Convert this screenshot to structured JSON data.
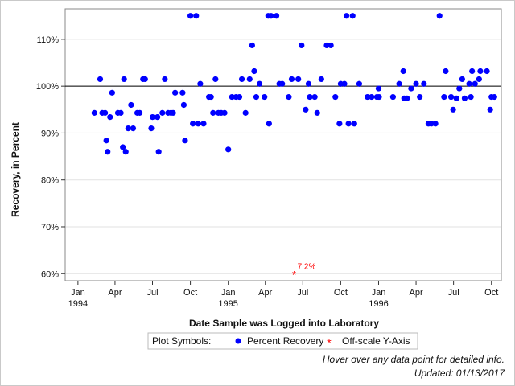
{
  "chart_data": {
    "type": "scatter",
    "xlabel": "Date Sample was Logged into Laboratory",
    "ylabel": "Recovery, in Percent",
    "x_range": [
      "1993-12-01",
      "1996-10-25"
    ],
    "ylim": [
      58.5,
      116.5
    ],
    "y_ticks": [
      60,
      70,
      80,
      90,
      100,
      110
    ],
    "y_tick_labels": [
      "60%",
      "70%",
      "80%",
      "90%",
      "100%",
      "110%"
    ],
    "reference_line": 100,
    "x_ticks": [
      {
        "date": "1994-01-01",
        "label": "Jan",
        "year": "1994"
      },
      {
        "date": "1994-04-01",
        "label": "Apr",
        "year": ""
      },
      {
        "date": "1994-07-01",
        "label": "Jul",
        "year": ""
      },
      {
        "date": "1994-10-01",
        "label": "Oct",
        "year": ""
      },
      {
        "date": "1995-01-01",
        "label": "Jan",
        "year": "1995"
      },
      {
        "date": "1995-04-01",
        "label": "Apr",
        "year": ""
      },
      {
        "date": "1995-07-01",
        "label": "Jul",
        "year": ""
      },
      {
        "date": "1995-10-01",
        "label": "Oct",
        "year": ""
      },
      {
        "date": "1996-01-01",
        "label": "Jan",
        "year": "1996"
      },
      {
        "date": "1996-04-01",
        "label": "Apr",
        "year": ""
      },
      {
        "date": "1996-07-01",
        "label": "Jul",
        "year": ""
      },
      {
        "date": "1996-10-01",
        "label": "Oct",
        "year": ""
      }
    ],
    "grid": "horizontal",
    "legend": {
      "title": "Plot Symbols:",
      "entries": [
        {
          "label": "Percent Recovery",
          "symbol": "dot",
          "color": "#0000ff"
        },
        {
          "label": "Off-scale Y-Axis",
          "symbol": "asterisk",
          "color": "#ff0000"
        }
      ],
      "placement": "bottom"
    },
    "series": [
      {
        "symbol": "dot",
        "color": "#0000ff",
        "points": [
          [
            "1994-02-10",
            94.3
          ],
          [
            "1994-02-24",
            101.5
          ],
          [
            "1994-03-01",
            94.3
          ],
          [
            "1994-03-08",
            94.3
          ],
          [
            "1994-03-11",
            88.4
          ],
          [
            "1994-03-14",
            86.0
          ],
          [
            "1994-03-20",
            93.4
          ],
          [
            "1994-03-25",
            98.6
          ],
          [
            "1994-04-08",
            94.3
          ],
          [
            "1994-04-15",
            94.3
          ],
          [
            "1994-04-20",
            87.0
          ],
          [
            "1994-04-23",
            101.5
          ],
          [
            "1994-04-27",
            86.0
          ],
          [
            "1994-05-03",
            91.0
          ],
          [
            "1994-05-10",
            96.0
          ],
          [
            "1994-05-15",
            91.0
          ],
          [
            "1994-05-25",
            94.3
          ],
          [
            "1994-05-31",
            94.3
          ],
          [
            "1994-06-08",
            101.5
          ],
          [
            "1994-06-13",
            101.5
          ],
          [
            "1994-06-28",
            91.0
          ],
          [
            "1994-07-01",
            93.4
          ],
          [
            "1994-07-13",
            93.4
          ],
          [
            "1994-07-16",
            86.0
          ],
          [
            "1994-07-25",
            94.3
          ],
          [
            "1994-07-31",
            101.5
          ],
          [
            "1994-08-08",
            94.3
          ],
          [
            "1994-08-15",
            94.3
          ],
          [
            "1994-08-20",
            94.3
          ],
          [
            "1994-08-25",
            98.6
          ],
          [
            "1994-09-12",
            98.6
          ],
          [
            "1994-09-15",
            96.0
          ],
          [
            "1994-09-18",
            88.4
          ],
          [
            "1994-10-01",
            115.0
          ],
          [
            "1994-10-07",
            92.0
          ],
          [
            "1994-10-15",
            115.0
          ],
          [
            "1994-10-20",
            92.0
          ],
          [
            "1994-10-25",
            100.5
          ],
          [
            "1994-11-02",
            92.0
          ],
          [
            "1994-11-15",
            97.7
          ],
          [
            "1994-11-20",
            97.7
          ],
          [
            "1994-11-25",
            94.3
          ],
          [
            "1994-12-01",
            101.5
          ],
          [
            "1994-12-08",
            94.3
          ],
          [
            "1994-12-15",
            94.3
          ],
          [
            "1994-12-23",
            94.3
          ],
          [
            "1995-01-01",
            86.5
          ],
          [
            "1995-01-10",
            97.7
          ],
          [
            "1995-01-20",
            97.7
          ],
          [
            "1995-01-28",
            97.7
          ],
          [
            "1995-02-03",
            101.5
          ],
          [
            "1995-02-12",
            94.3
          ],
          [
            "1995-02-22",
            101.5
          ],
          [
            "1995-02-28",
            108.7
          ],
          [
            "1995-03-05",
            103.2
          ],
          [
            "1995-03-10",
            97.7
          ],
          [
            "1995-03-18",
            100.5
          ],
          [
            "1995-03-30",
            97.7
          ],
          [
            "1995-04-10",
            92.0
          ],
          [
            "1995-04-08",
            115.0
          ],
          [
            "1995-04-15",
            115.0
          ],
          [
            "1995-04-28",
            115.0
          ],
          [
            "1995-05-05",
            100.5
          ],
          [
            "1995-05-12",
            100.5
          ],
          [
            "1995-05-28",
            97.7
          ],
          [
            "1995-06-04",
            101.5
          ],
          [
            "1995-06-20",
            101.5
          ],
          [
            "1995-06-28",
            108.7
          ],
          [
            "1995-07-08",
            95.0
          ],
          [
            "1995-07-15",
            100.5
          ],
          [
            "1995-07-18",
            97.7
          ],
          [
            "1995-07-30",
            97.7
          ],
          [
            "1995-08-05",
            94.3
          ],
          [
            "1995-08-15",
            101.5
          ],
          [
            "1995-08-28",
            108.7
          ],
          [
            "1995-09-07",
            108.7
          ],
          [
            "1995-09-18",
            97.7
          ],
          [
            "1995-09-28",
            92.0
          ],
          [
            "1995-10-01",
            100.5
          ],
          [
            "1995-10-10",
            100.5
          ],
          [
            "1995-10-15",
            115.0
          ],
          [
            "1995-10-20",
            92.0
          ],
          [
            "1995-10-30",
            115.0
          ],
          [
            "1995-11-03",
            92.0
          ],
          [
            "1995-11-15",
            100.5
          ],
          [
            "1995-12-05",
            97.7
          ],
          [
            "1995-12-15",
            97.7
          ],
          [
            "1995-12-28",
            97.7
          ],
          [
            "1996-01-02",
            97.7
          ],
          [
            "1996-01-01",
            99.5
          ],
          [
            "1996-02-05",
            97.7
          ],
          [
            "1996-02-20",
            100.5
          ],
          [
            "1996-03-01",
            103.2
          ],
          [
            "1996-03-03",
            97.4
          ],
          [
            "1996-03-10",
            97.4
          ],
          [
            "1996-03-20",
            99.5
          ],
          [
            "1996-04-01",
            100.5
          ],
          [
            "1996-04-10",
            97.7
          ],
          [
            "1996-04-20",
            100.5
          ],
          [
            "1996-05-01",
            92.0
          ],
          [
            "1996-05-08",
            92.0
          ],
          [
            "1996-05-18",
            92.0
          ],
          [
            "1996-05-28",
            115.0
          ],
          [
            "1996-06-08",
            97.7
          ],
          [
            "1996-06-12",
            103.2
          ],
          [
            "1996-06-25",
            97.7
          ],
          [
            "1996-06-30",
            95.0
          ],
          [
            "1996-07-08",
            97.4
          ],
          [
            "1996-07-15",
            99.5
          ],
          [
            "1996-07-22",
            101.5
          ],
          [
            "1996-07-28",
            97.4
          ],
          [
            "1996-08-08",
            100.5
          ],
          [
            "1996-08-12",
            97.7
          ],
          [
            "1996-08-15",
            103.2
          ],
          [
            "1996-08-22",
            100.5
          ],
          [
            "1996-09-01",
            101.5
          ],
          [
            "1996-09-04",
            103.2
          ],
          [
            "1996-09-20",
            103.2
          ],
          [
            "1996-09-28",
            95.0
          ],
          [
            "1996-10-01",
            97.7
          ],
          [
            "1996-10-08",
            97.7
          ]
        ]
      },
      {
        "symbol": "asterisk",
        "color": "#ff0000",
        "points": [
          [
            "1995-06-10",
            60.0
          ]
        ],
        "labels": [
          "7.2%"
        ]
      }
    ]
  },
  "notes": {
    "hover_text": "Hover over any data point for detailed info.",
    "updated_text": "Updated: 01/13/2017"
  }
}
